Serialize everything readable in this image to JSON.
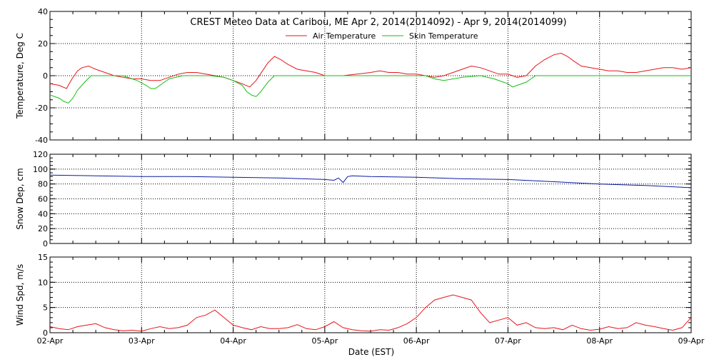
{
  "chart_data": [
    {
      "type": "line",
      "title": "CREST Meteo Data at Caribou, ME   Apr  2, 2014(2014092) - Apr  9, 2014(2014099)",
      "xlabel": "",
      "ylabel": "Temperature, Deg C",
      "ylim": [
        -40,
        40
      ],
      "yticks": [
        "40",
        "20",
        "0",
        "-20",
        "-40"
      ],
      "xlim": [
        "2014-04-02",
        "2014-04-09"
      ],
      "grid": true,
      "legend": "top-center",
      "series": [
        {
          "name": "Air Temperature",
          "color": "#e8141a",
          "x": [
            2.0,
            2.1,
            2.18,
            2.24,
            2.3,
            2.35,
            2.42,
            2.5,
            2.6,
            2.7,
            2.8,
            2.9,
            3.0,
            3.1,
            3.2,
            3.3,
            3.4,
            3.5,
            3.6,
            3.7,
            3.8,
            3.9,
            4.0,
            4.1,
            4.18,
            4.25,
            4.32,
            4.38,
            4.45,
            4.52,
            4.6,
            4.7,
            4.8,
            4.9,
            5.0,
            5.1,
            5.2,
            5.35,
            5.5,
            5.6,
            5.7,
            5.8,
            5.9,
            6.0,
            6.1,
            6.2,
            6.3,
            6.4,
            6.5,
            6.6,
            6.7,
            6.8,
            6.9,
            7.0,
            7.1,
            7.2,
            7.3,
            7.4,
            7.5,
            7.58,
            7.65,
            7.72,
            7.8,
            7.9,
            8.0,
            8.1,
            8.2,
            8.3,
            8.4,
            8.5,
            8.6,
            8.7,
            8.8,
            8.9,
            9.0
          ],
          "values": [
            -5,
            -6,
            -8,
            -2,
            3,
            5,
            6,
            4,
            2,
            0,
            -1,
            -2,
            -2,
            -3,
            -3,
            -1,
            1,
            2,
            2,
            1,
            0,
            -1,
            -3,
            -5,
            -7,
            -3,
            3,
            8,
            12,
            10,
            7,
            4,
            3,
            2,
            0,
            0,
            0,
            1,
            2,
            3,
            2,
            2,
            1,
            1,
            0,
            -1,
            0,
            2,
            4,
            6,
            5,
            3,
            1,
            1,
            -1,
            0,
            6,
            10,
            13,
            14,
            12,
            9,
            6,
            5,
            4,
            3,
            3,
            2,
            2,
            3,
            4,
            5,
            5,
            4,
            5
          ]
        },
        {
          "name": "Skin Temperature",
          "color": "#16c012",
          "x": [
            2.0,
            2.1,
            2.15,
            2.2,
            2.25,
            2.3,
            2.38,
            2.45,
            2.6,
            2.8,
            2.95,
            3.05,
            3.1,
            3.15,
            3.2,
            3.3,
            3.45,
            3.6,
            3.75,
            3.9,
            4.0,
            4.1,
            4.15,
            4.2,
            4.25,
            4.3,
            4.38,
            4.45,
            4.6,
            4.8,
            5.0,
            5.2,
            5.4,
            5.6,
            5.8,
            6.0,
            6.1,
            6.2,
            6.3,
            6.5,
            6.7,
            6.85,
            6.95,
            7.0,
            7.05,
            7.1,
            7.2,
            7.3,
            7.4,
            7.6,
            7.8,
            8.0,
            8.3,
            8.6,
            8.9,
            9.0
          ],
          "values": [
            -12,
            -14,
            -16,
            -17,
            -14,
            -9,
            -4,
            0,
            0,
            0,
            -3,
            -6,
            -8,
            -8,
            -6,
            -2,
            0,
            0,
            0,
            -1,
            -3,
            -6,
            -10,
            -12,
            -13,
            -10,
            -4,
            0,
            0,
            0,
            0,
            0,
            0,
            0,
            0,
            0,
            0,
            -2,
            -3,
            -1,
            0,
            -2,
            -4,
            -5,
            -7,
            -6,
            -4,
            0,
            0,
            0,
            0,
            0,
            0,
            0,
            0,
            0
          ]
        }
      ]
    },
    {
      "type": "line",
      "title": "",
      "xlabel": "",
      "ylabel": "Snow Dep, cm",
      "ylim": [
        0,
        120
      ],
      "yticks": [
        "120",
        "100",
        "80",
        "60",
        "40",
        "20",
        "0"
      ],
      "xlim": [
        "2014-04-02",
        "2014-04-09"
      ],
      "grid": true,
      "series": [
        {
          "color": "#0b1aa3",
          "x": [
            2.0,
            2.5,
            3.0,
            3.5,
            4.0,
            4.5,
            5.0,
            5.1,
            5.15,
            5.2,
            5.25,
            5.3,
            5.5,
            6.0,
            6.5,
            7.0,
            7.5,
            8.0,
            8.5,
            9.0
          ],
          "values": [
            92,
            91,
            90,
            90,
            89,
            88,
            86,
            85,
            88,
            82,
            90,
            91,
            90,
            89,
            87,
            86,
            83,
            80,
            78,
            75
          ]
        }
      ]
    },
    {
      "type": "line",
      "title": "",
      "xlabel": "Date (EST)",
      "ylabel": "Wind Spd, m/s",
      "ylim": [
        0,
        15
      ],
      "yticks": [
        "15",
        "10",
        "5",
        "0"
      ],
      "xticks": [
        "02-Apr",
        "03-Apr",
        "04-Apr",
        "05-Apr",
        "06-Apr",
        "07-Apr",
        "08-Apr",
        "09-Apr"
      ],
      "xlim": [
        "2014-04-02",
        "2014-04-09"
      ],
      "grid": true,
      "series": [
        {
          "color": "#e8141a",
          "x": [
            2.0,
            2.1,
            2.2,
            2.3,
            2.4,
            2.5,
            2.6,
            2.7,
            2.8,
            2.9,
            3.0,
            3.1,
            3.2,
            3.3,
            3.4,
            3.5,
            3.6,
            3.7,
            3.8,
            3.9,
            4.0,
            4.1,
            4.2,
            4.3,
            4.4,
            4.5,
            4.6,
            4.7,
            4.8,
            4.9,
            5.0,
            5.1,
            5.2,
            5.3,
            5.4,
            5.5,
            5.6,
            5.7,
            5.8,
            5.9,
            6.0,
            6.1,
            6.2,
            6.3,
            6.4,
            6.5,
            6.6,
            6.7,
            6.8,
            6.9,
            7.0,
            7.1,
            7.2,
            7.3,
            7.4,
            7.5,
            7.6,
            7.7,
            7.8,
            7.9,
            8.0,
            8.1,
            8.2,
            8.3,
            8.4,
            8.5,
            8.6,
            8.7,
            8.8,
            8.9,
            9.0
          ],
          "values": [
            1.2,
            0.8,
            0.6,
            1.2,
            1.5,
            1.8,
            1.0,
            0.6,
            0.4,
            0.5,
            0.3,
            0.8,
            1.2,
            0.8,
            1.0,
            1.5,
            3.0,
            3.5,
            4.5,
            3.0,
            1.5,
            1.0,
            0.6,
            1.2,
            0.8,
            0.8,
            1.0,
            1.6,
            0.8,
            0.6,
            1.2,
            2.2,
            1.0,
            0.6,
            0.4,
            0.3,
            0.6,
            0.5,
            1.0,
            1.8,
            3.0,
            5.0,
            6.5,
            7.0,
            7.5,
            7.0,
            6.5,
            4.0,
            2.0,
            2.5,
            3.0,
            1.5,
            2.0,
            1.0,
            0.8,
            1.0,
            0.6,
            1.5,
            0.8,
            0.5,
            0.7,
            1.2,
            0.8,
            1.0,
            2.0,
            1.5,
            1.2,
            0.8,
            0.5,
            1.0,
            3.0
          ]
        }
      ]
    }
  ]
}
